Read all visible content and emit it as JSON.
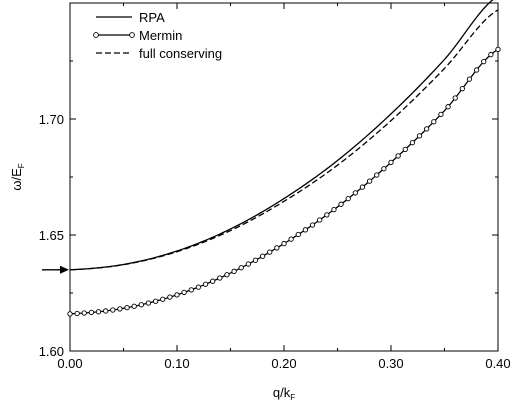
{
  "chart_data": {
    "type": "line",
    "xlabel": "q/k",
    "xlabel_sub": "F",
    "ylabel": "ω/E",
    "ylabel_sub": "F",
    "xlim": [
      0.0,
      0.4
    ],
    "ylim": [
      1.6,
      1.75
    ],
    "x_ticks": [
      0.0,
      0.1,
      0.2,
      0.3,
      0.4
    ],
    "x_tick_labels": [
      "0.00",
      "0.10",
      "0.20",
      "0.30",
      "0.40"
    ],
    "y_ticks": [
      1.6,
      1.65,
      1.7
    ],
    "y_tick_labels": [
      "1.60",
      "1.65",
      "1.70"
    ],
    "grid": false,
    "legend_position": "top-left",
    "arrow_marker": {
      "x": 0.0,
      "y": 1.635
    },
    "series": [
      {
        "name": "RPA",
        "style": "solid",
        "markers": false,
        "x": [
          0.0,
          0.05,
          0.1,
          0.15,
          0.2,
          0.25,
          0.3,
          0.35,
          0.4
        ],
        "y": [
          1.635,
          1.6373,
          1.6431,
          1.6526,
          1.6657,
          1.6821,
          1.7022,
          1.7257,
          1.753
        ]
      },
      {
        "name": "Mermin",
        "style": "solid",
        "markers": true,
        "x": [
          0.0,
          0.05,
          0.1,
          0.15,
          0.2,
          0.25,
          0.3,
          0.35,
          0.4
        ],
        "y": [
          1.616,
          1.6184,
          1.6242,
          1.6336,
          1.6463,
          1.6621,
          1.6813,
          1.7036,
          1.73
        ]
      },
      {
        "name": "full conserving",
        "style": "dashed",
        "markers": false,
        "x": [
          0.0,
          0.05,
          0.1,
          0.15,
          0.2,
          0.25,
          0.3,
          0.35,
          0.4
        ],
        "y": [
          1.635,
          1.6372,
          1.6428,
          1.6519,
          1.6645,
          1.6801,
          1.6993,
          1.7218,
          1.747
        ]
      }
    ]
  }
}
